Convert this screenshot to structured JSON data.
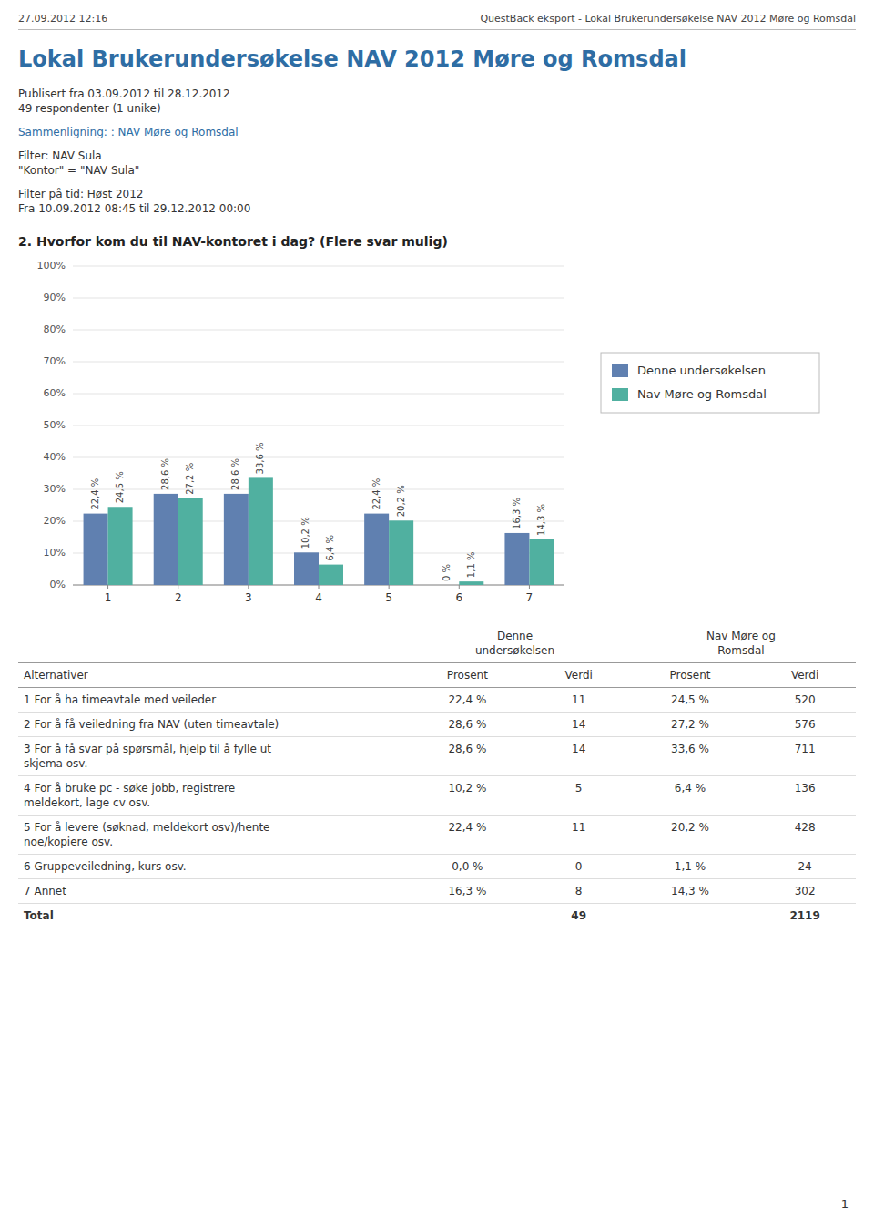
{
  "page_header_left": "27.09.2012 12:16",
  "page_header_right": "QuestBack eksport - Lokal Brukerundersøkelse NAV 2012 Møre og Romsdal",
  "title": "Lokal Brukerundersøkelse NAV 2012 Møre og Romsdal",
  "subtitle": [
    "Publisert fra 03.09.2012 til 28.12.2012",
    "49 respondenter (1 unike)"
  ],
  "comparison": "Sammenligning: : NAV Møre og Romsdal",
  "filter": [
    "Filter: NAV Sula",
    "\"Kontor\" = \"NAV Sula\""
  ],
  "time_filter": [
    "Filter på tid: Høst 2012",
    "Fra 10.09.2012 08:45 til 29.12.2012 00:00"
  ],
  "chart_data": {
    "type": "bar",
    "title": "2. Hvorfor kom du til NAV-kontoret i dag? (Flere svar mulig)",
    "categories": [
      "1",
      "2",
      "3",
      "4",
      "5",
      "6",
      "7"
    ],
    "series": [
      {
        "name": "Denne undersøkelsen",
        "color": "#6080b0",
        "values": [
          22.4,
          28.6,
          28.6,
          10.2,
          22.4,
          0.0,
          16.3
        ],
        "value_labels": [
          "22,4 %",
          "28,6 %",
          "28,6 %",
          "10,2 %",
          "22,4 %",
          "0 %",
          "16,3 %"
        ]
      },
      {
        "name": "Nav Møre og Romsdal",
        "color": "#50b0a0",
        "values": [
          24.5,
          27.2,
          33.6,
          6.4,
          20.2,
          1.1,
          14.3
        ],
        "value_labels": [
          "24,5 %",
          "27,2 %",
          "33,6 %",
          "6,4 %",
          "20,2 %",
          "1,1 %",
          "14,3 %"
        ]
      }
    ],
    "ylim": [
      0,
      100
    ],
    "yticks": [
      {
        "value": 0,
        "label": "0%"
      },
      {
        "value": 10,
        "label": "10%"
      },
      {
        "value": 20,
        "label": "20%"
      },
      {
        "value": 30,
        "label": "30%"
      },
      {
        "value": 40,
        "label": "40%"
      },
      {
        "value": 50,
        "label": "50%"
      },
      {
        "value": 60,
        "label": "60%"
      },
      {
        "value": 70,
        "label": "70%"
      },
      {
        "value": 80,
        "label": "80%"
      },
      {
        "value": 90,
        "label": "90%"
      },
      {
        "value": 100,
        "label": "100%"
      }
    ],
    "grid": true,
    "legend": "right",
    "data_labels": true
  },
  "table": {
    "group_headers": [
      "Denne\nundersøkelsen",
      "Nav Møre og\nRomsdal"
    ],
    "headers": [
      "Alternativer",
      "Prosent",
      "Verdi",
      "Prosent",
      "Verdi"
    ],
    "rows": [
      [
        "1 For å ha timeavtale med veileder",
        "22,4 %",
        "11",
        "24,5 %",
        "520"
      ],
      [
        "2 For å få veiledning fra NAV (uten timeavtale)",
        "28,6 %",
        "14",
        "27,2 %",
        "576"
      ],
      [
        "3 For å få svar på spørsmål, hjelp til å fylle ut\nskjema osv.",
        "28,6 %",
        "14",
        "33,6 %",
        "711"
      ],
      [
        "4 For å bruke pc - søke jobb, registrere\nmeldekort, lage cv osv.",
        "10,2 %",
        "5",
        "6,4 %",
        "136"
      ],
      [
        "5 For å levere (søknad, meldekort osv)/hente\nnoe/kopiere osv.",
        "22,4 %",
        "11",
        "20,2 %",
        "428"
      ],
      [
        "6 Gruppeveiledning, kurs osv.",
        "0,0 %",
        "0",
        "1,1 %",
        "24"
      ],
      [
        "7 Annet",
        "16,3 %",
        "8",
        "14,3 %",
        "302"
      ],
      [
        "Total",
        "",
        "49",
        "",
        "2119"
      ]
    ]
  },
  "page_number": "1"
}
